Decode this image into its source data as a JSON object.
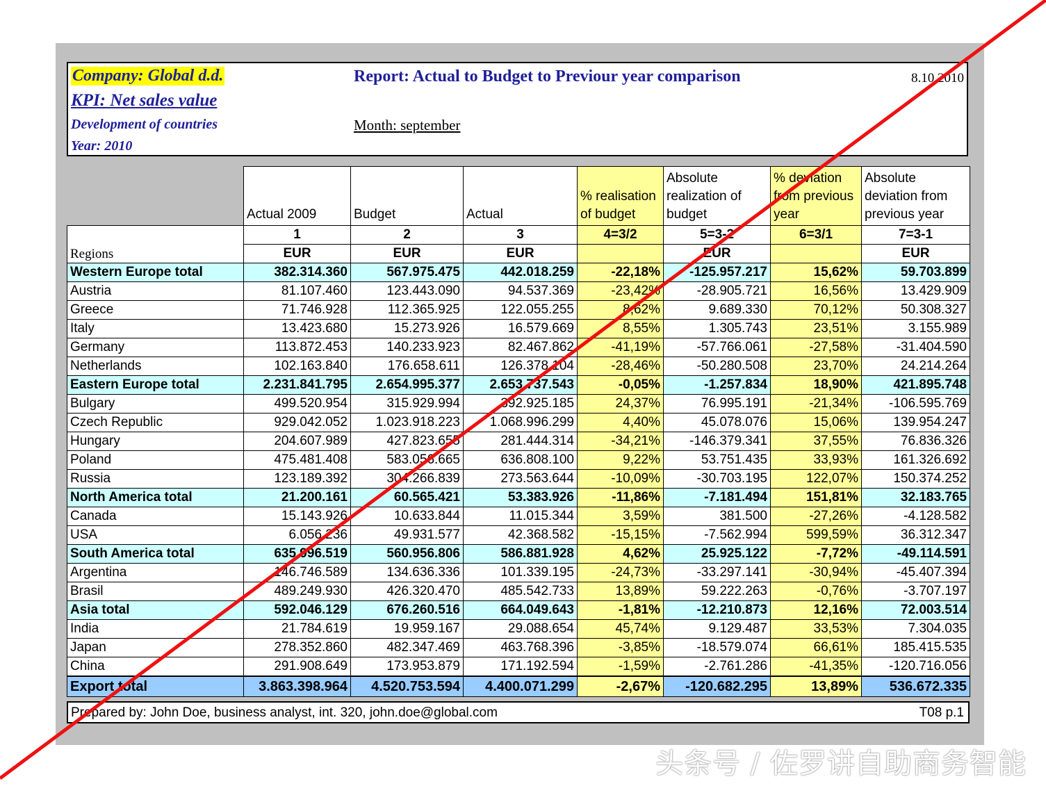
{
  "header": {
    "company": "Company: Global d.d.",
    "kpi": "KPI: Net sales value",
    "subtitle": "Development of countries",
    "year": "Year: 2010",
    "report_title": "Report: Actual to Budget to Previour year comparison",
    "month": "Month: september",
    "date": "8.10.2010"
  },
  "table": {
    "columns": [
      {
        "title": "Actual 2009",
        "index": "1",
        "unit": "EUR"
      },
      {
        "title": "Budget",
        "index": "2",
        "unit": "EUR"
      },
      {
        "title": "Actual",
        "index": "3",
        "unit": "EUR"
      },
      {
        "title": "% realisation of budget",
        "index": "4=3/2",
        "unit": ""
      },
      {
        "title": "Absolute realization of budget",
        "index": "5=3-2",
        "unit": "EUR"
      },
      {
        "title": "% deviation from previous year",
        "index": "6=3/1",
        "unit": ""
      },
      {
        "title": "Absolute deviation from previous year",
        "index": "7=3-1",
        "unit": "EUR"
      }
    ],
    "regions_label": "Regions",
    "rows": [
      {
        "type": "total",
        "name": "Western Europe total",
        "values": [
          "382.314.360",
          "567.975.475",
          "442.018.259",
          "-22,18%",
          "-125.957.217",
          "15,62%",
          "59.703.899"
        ]
      },
      {
        "type": "row",
        "name": "Austria",
        "values": [
          "81.107.460",
          "123.443.090",
          "94.537.369",
          "-23,42%",
          "-28.905.721",
          "16,56%",
          "13.429.909"
        ]
      },
      {
        "type": "row",
        "name": "Greece",
        "values": [
          "71.746.928",
          "112.365.925",
          "122.055.255",
          "8,62%",
          "9.689.330",
          "70,12%",
          "50.308.327"
        ]
      },
      {
        "type": "row",
        "name": "Italy",
        "values": [
          "13.423.680",
          "15.273.926",
          "16.579.669",
          "8,55%",
          "1.305.743",
          "23,51%",
          "3.155.989"
        ]
      },
      {
        "type": "row",
        "name": "Germany",
        "values": [
          "113.872.453",
          "140.233.923",
          "82.467.862",
          "-41,19%",
          "-57.766.061",
          "-27,58%",
          "-31.404.590"
        ]
      },
      {
        "type": "row",
        "name": "Netherlands",
        "values": [
          "102.163.840",
          "176.658.611",
          "126.378.104",
          "-28,46%",
          "-50.280.508",
          "23,70%",
          "24.214.264"
        ]
      },
      {
        "type": "total",
        "name": "Eastern Europe total",
        "values": [
          "2.231.841.795",
          "2.654.995.377",
          "2.653.737.543",
          "-0,05%",
          "-1.257.834",
          "18,90%",
          "421.895.748"
        ]
      },
      {
        "type": "row",
        "name": "Bulgary",
        "values": [
          "499.520.954",
          "315.929.994",
          "392.925.185",
          "24,37%",
          "76.995.191",
          "-21,34%",
          "-106.595.769"
        ]
      },
      {
        "type": "row",
        "name": "Czech Republic",
        "values": [
          "929.042.052",
          "1.023.918.223",
          "1.068.996.299",
          "4,40%",
          "45.078.076",
          "15,06%",
          "139.954.247"
        ]
      },
      {
        "type": "row",
        "name": "Hungary",
        "values": [
          "204.607.989",
          "427.823.655",
          "281.444.314",
          "-34,21%",
          "-146.379.341",
          "37,55%",
          "76.836.326"
        ]
      },
      {
        "type": "row",
        "name": "Poland",
        "values": [
          "475.481.408",
          "583.056.665",
          "636.808.100",
          "9,22%",
          "53.751.435",
          "33,93%",
          "161.326.692"
        ]
      },
      {
        "type": "row",
        "name": "Russia",
        "values": [
          "123.189.392",
          "304.266.839",
          "273.563.644",
          "-10,09%",
          "-30.703.195",
          "122,07%",
          "150.374.252"
        ]
      },
      {
        "type": "total",
        "name": "North America total",
        "values": [
          "21.200.161",
          "60.565.421",
          "53.383.926",
          "-11,86%",
          "-7.181.494",
          "151,81%",
          "32.183.765"
        ]
      },
      {
        "type": "row",
        "name": "Canada",
        "values": [
          "15.143.926",
          "10.633.844",
          "11.015.344",
          "3,59%",
          "381.500",
          "-27,26%",
          "-4.128.582"
        ]
      },
      {
        "type": "row",
        "name": "USA",
        "values": [
          "6.056.236",
          "49.931.577",
          "42.368.582",
          "-15,15%",
          "-7.562.994",
          "599,59%",
          "36.312.347"
        ]
      },
      {
        "type": "total",
        "name": "South America total",
        "values": [
          "635.996.519",
          "560.956.806",
          "586.881.928",
          "4,62%",
          "25.925.122",
          "-7,72%",
          "-49.114.591"
        ]
      },
      {
        "type": "row",
        "name": "Argentina",
        "values": [
          "146.746.589",
          "134.636.336",
          "101.339.195",
          "-24,73%",
          "-33.297.141",
          "-30,94%",
          "-45.407.394"
        ]
      },
      {
        "type": "row",
        "name": "Brasil",
        "values": [
          "489.249.930",
          "426.320.470",
          "485.542.733",
          "13,89%",
          "59.222.263",
          "-0,76%",
          "-3.707.197"
        ]
      },
      {
        "type": "total",
        "name": "Asia total",
        "values": [
          "592.046.129",
          "676.260.516",
          "664.049.643",
          "-1,81%",
          "-12.210.873",
          "12,16%",
          "72.003.514"
        ]
      },
      {
        "type": "row",
        "name": "India",
        "values": [
          "21.784.619",
          "19.959.167",
          "29.088.654",
          "45,74%",
          "9.129.487",
          "33,53%",
          "7.304.035"
        ]
      },
      {
        "type": "row",
        "name": "Japan",
        "values": [
          "278.352.860",
          "482.347.469",
          "463.768.396",
          "-3,85%",
          "-18.579.074",
          "66,61%",
          "185.415.535"
        ]
      },
      {
        "type": "row",
        "name": "China",
        "values": [
          "291.908.649",
          "173.953.879",
          "171.192.594",
          "-1,59%",
          "-2.761.286",
          "-41,35%",
          "-120.716.056"
        ]
      },
      {
        "type": "grand",
        "name": "Export total",
        "values": [
          "3.863.398.964",
          "4.520.753.594",
          "4.400.071.299",
          "-2,67%",
          "-120.682.295",
          "13,89%",
          "536.672.335"
        ]
      }
    ]
  },
  "footer": {
    "prepared_by": "Prepared by: John Doe, business analyst, int. 320, john.doe@global.com",
    "page_ref": "T08  p.1"
  },
  "watermark": "头条号 / 佐罗讲自助商务智能",
  "colors": {
    "strike_line": "#ee1111",
    "total_row": "#ccffff",
    "grand_total_row": "#99ccff",
    "percent_columns": "#ffff99",
    "title_blue": "#1f1f9a"
  }
}
